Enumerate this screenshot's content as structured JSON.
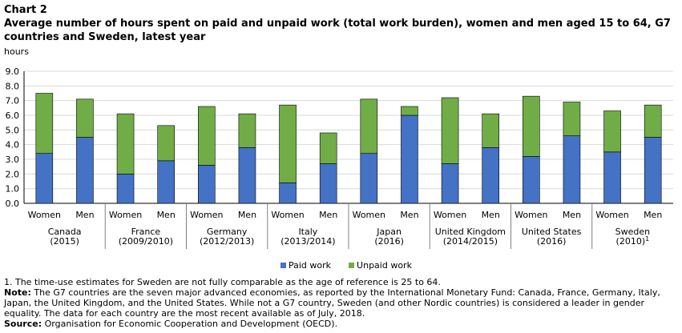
{
  "chart_label": "Chart 2",
  "title": "Average number of hours spent on paid and unpaid work (total work burden), women and men aged 15 to 64, G7 countries and Sweden, latest year",
  "unit_label": "hours",
  "legend": {
    "paid": "Paid work",
    "unpaid": "Unpaid work"
  },
  "colors": {
    "paid": "#4472c4",
    "unpaid": "#70ad47",
    "grid": "#d9d9d9",
    "axis": "#000000"
  },
  "footnotes": {
    "note1": "1. The time-use estimates for Sweden are not fully comparable as the age of reference is 25 to 64.",
    "note_label": "Note:",
    "note_text": " The G7 countries are the seven major advanced economies, as reported by the International Monetary Fund: Canada, France, Germany, Italy, Japan, the United Kingdom, and the United States. While not a G7 country, Sweden (and other Nordic countries) is considered a leader in gender equality. The data for each country are the most recent available as of July, 2018.",
    "source_label": "Source:",
    "source_text": " Organisation for Economic Cooperation and Development (OECD)."
  },
  "chart_data": {
    "type": "bar",
    "stacked": true,
    "ylabel": "hours",
    "ylim": [
      0,
      9
    ],
    "yticks": [
      "0.0",
      "1.0",
      "2.0",
      "3.0",
      "4.0",
      "5.0",
      "6.0",
      "7.0",
      "8.0",
      "9.0"
    ],
    "grid": true,
    "legend_position": "bottom",
    "groups": [
      {
        "name": "Canada",
        "year": "(2015)",
        "sup": ""
      },
      {
        "name": "France",
        "year": "(2009/2010)",
        "sup": ""
      },
      {
        "name": "Germany",
        "year": "(2012/2013)",
        "sup": ""
      },
      {
        "name": "Italy",
        "year": "(2013/2014)",
        "sup": ""
      },
      {
        "name": "Japan",
        "year": "(2016)",
        "sup": ""
      },
      {
        "name": "United Kingdom",
        "year": "(2014/2015)",
        "sup": ""
      },
      {
        "name": "United States",
        "year": "(2016)",
        "sup": ""
      },
      {
        "name": "Sweden",
        "year": "(2010)",
        "sup": "1"
      }
    ],
    "subcategories": [
      "Women",
      "Men"
    ],
    "series": [
      {
        "name": "Paid work",
        "values": [
          3.4,
          4.5,
          2.0,
          2.9,
          2.6,
          3.8,
          1.4,
          2.7,
          3.4,
          6.0,
          2.7,
          3.8,
          3.2,
          4.6,
          3.5,
          4.5
        ]
      },
      {
        "name": "Unpaid work",
        "values": [
          4.1,
          2.6,
          4.1,
          2.4,
          4.0,
          2.3,
          5.3,
          2.1,
          3.7,
          0.6,
          4.5,
          2.3,
          4.1,
          2.3,
          2.8,
          2.2
        ]
      }
    ]
  }
}
